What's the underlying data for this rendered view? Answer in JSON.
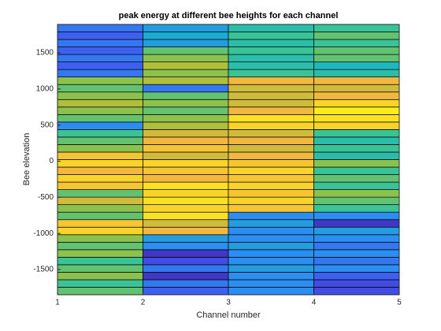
{
  "chart_data": {
    "type": "heatmap",
    "title": "peak energy at different bee heights for each channel",
    "x_label": "Channel number",
    "y_label": "Bee elevation",
    "xlim": [
      1,
      5
    ],
    "xticks": [
      1,
      2,
      3,
      4,
      5
    ],
    "ylim": [
      -1850,
      1894
    ],
    "yticks": [
      -1500,
      -1000,
      -500,
      0,
      500,
      1000,
      1500
    ],
    "x_edges": [
      1,
      2,
      3,
      4,
      5
    ],
    "y_edges": [
      -1850,
      -1746,
      -1642,
      -1538,
      -1434,
      -1330,
      -1226,
      -1122,
      -1018,
      -914,
      -810,
      -706,
      -602,
      -498,
      -394,
      -290,
      -186,
      -82,
      22,
      126,
      230,
      334,
      438,
      542,
      646,
      750,
      854,
      958,
      1062,
      1166,
      1270,
      1374,
      1478,
      1582,
      1686,
      1790,
      1894
    ],
    "colormap": [
      "#3e26a8",
      "#4354f0",
      "#2b8ef0",
      "#17b3c9",
      "#39c396",
      "#a0c13a",
      "#f2b73f",
      "#fada24",
      "#f9fb15"
    ],
    "values": [
      [
        0.55,
        0.15,
        0.25,
        0.1
      ],
      [
        0.5,
        0.2,
        0.25,
        0.1
      ],
      [
        0.6,
        0.05,
        0.25,
        0.15
      ],
      [
        0.55,
        0.2,
        0.3,
        0.25
      ],
      [
        0.5,
        0.1,
        0.25,
        0.2
      ],
      [
        0.6,
        0.05,
        0.25,
        0.25
      ],
      [
        0.55,
        0.25,
        0.3,
        0.2
      ],
      [
        0.6,
        0.3,
        0.25,
        0.25
      ],
      [
        0.85,
        0.75,
        0.25,
        0.3
      ],
      [
        0.8,
        0.7,
        0.3,
        0.05
      ],
      [
        0.55,
        0.9,
        0.25,
        0.25
      ],
      [
        0.6,
        0.85,
        0.8,
        0.5
      ],
      [
        0.7,
        0.9,
        0.85,
        0.55
      ],
      [
        0.55,
        0.85,
        0.8,
        0.6
      ],
      [
        0.8,
        0.9,
        0.85,
        0.5
      ],
      [
        0.85,
        0.75,
        0.8,
        0.55
      ],
      [
        0.75,
        0.8,
        0.85,
        0.5
      ],
      [
        0.85,
        0.85,
        0.8,
        0.6
      ],
      [
        0.8,
        0.7,
        0.75,
        0.45
      ],
      [
        0.6,
        0.8,
        0.7,
        0.5
      ],
      [
        0.55,
        0.75,
        0.75,
        0.45
      ],
      [
        0.5,
        0.7,
        0.7,
        0.5
      ],
      [
        0.25,
        0.65,
        0.85,
        0.85
      ],
      [
        0.55,
        0.6,
        0.9,
        0.9
      ],
      [
        0.6,
        0.55,
        0.75,
        0.95
      ],
      [
        0.65,
        0.6,
        0.7,
        0.85
      ],
      [
        0.6,
        0.55,
        0.7,
        0.75
      ],
      [
        0.55,
        0.2,
        0.7,
        0.7
      ],
      [
        0.6,
        0.65,
        0.75,
        0.75
      ],
      [
        0.2,
        0.6,
        0.5,
        0.45
      ],
      [
        0.15,
        0.65,
        0.45,
        0.4
      ],
      [
        0.2,
        0.6,
        0.45,
        0.55
      ],
      [
        0.15,
        0.55,
        0.5,
        0.55
      ],
      [
        0.2,
        0.3,
        0.45,
        0.5
      ],
      [
        0.15,
        0.35,
        0.5,
        0.55
      ],
      [
        0.2,
        0.3,
        0.45,
        0.5
      ]
    ]
  }
}
